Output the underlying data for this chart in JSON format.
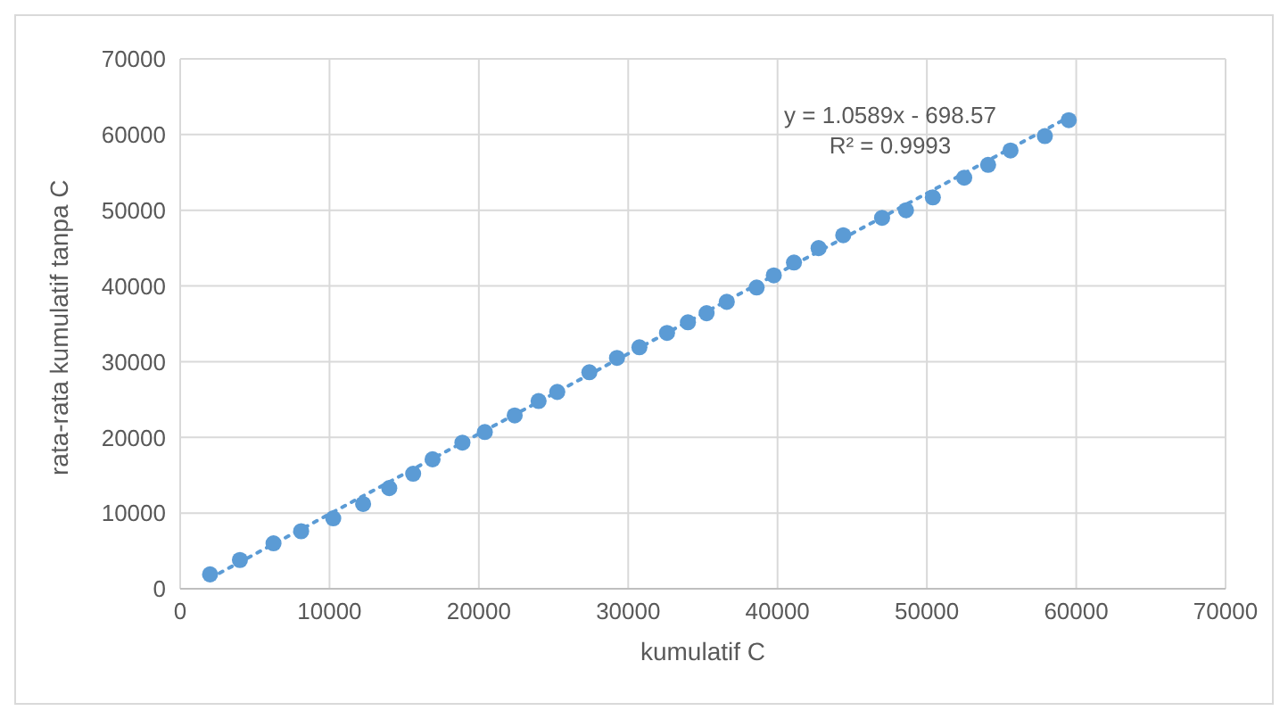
{
  "chart_data": {
    "type": "scatter",
    "xlabel": "kumulatif C",
    "ylabel": "rata-rata kumulatif tanpa C",
    "xlim": [
      0,
      70000
    ],
    "ylim": [
      0,
      70000
    ],
    "xticks": [
      0,
      10000,
      20000,
      30000,
      40000,
      50000,
      60000,
      70000
    ],
    "yticks": [
      0,
      10000,
      20000,
      30000,
      40000,
      50000,
      60000,
      70000
    ],
    "grid": true,
    "marker": "circle",
    "annotations": [
      "y = 1.0589x - 698.57",
      "R² = 0.9993"
    ],
    "series": [
      {
        "color": "#5b9bd5",
        "x": [
          2000,
          4000,
          6250,
          8100,
          10250,
          12250,
          14000,
          15600,
          16900,
          18900,
          20400,
          22400,
          24000,
          25250,
          27400,
          29250,
          30750,
          32600,
          34000,
          35250,
          36600,
          38600,
          39750,
          41100,
          42750,
          44400,
          47000,
          48600,
          50400,
          52500,
          54100,
          55600,
          57900,
          59500
        ],
        "values": [
          1900,
          3800,
          6000,
          7600,
          9300,
          11200,
          13300,
          15200,
          17100,
          19300,
          20700,
          22900,
          24800,
          26000,
          28600,
          30500,
          31900,
          33800,
          35200,
          36400,
          37900,
          39800,
          41400,
          43100,
          45000,
          46700,
          49000,
          50000,
          51700,
          54300,
          56000,
          57900,
          59800,
          61900
        ]
      },
      {
        "type": "line",
        "color": "#5b9bd5",
        "line_style": "dotted",
        "marker": "none",
        "x": [
          2000,
          59500
        ],
        "values": [
          1400,
          62300
        ]
      }
    ]
  }
}
